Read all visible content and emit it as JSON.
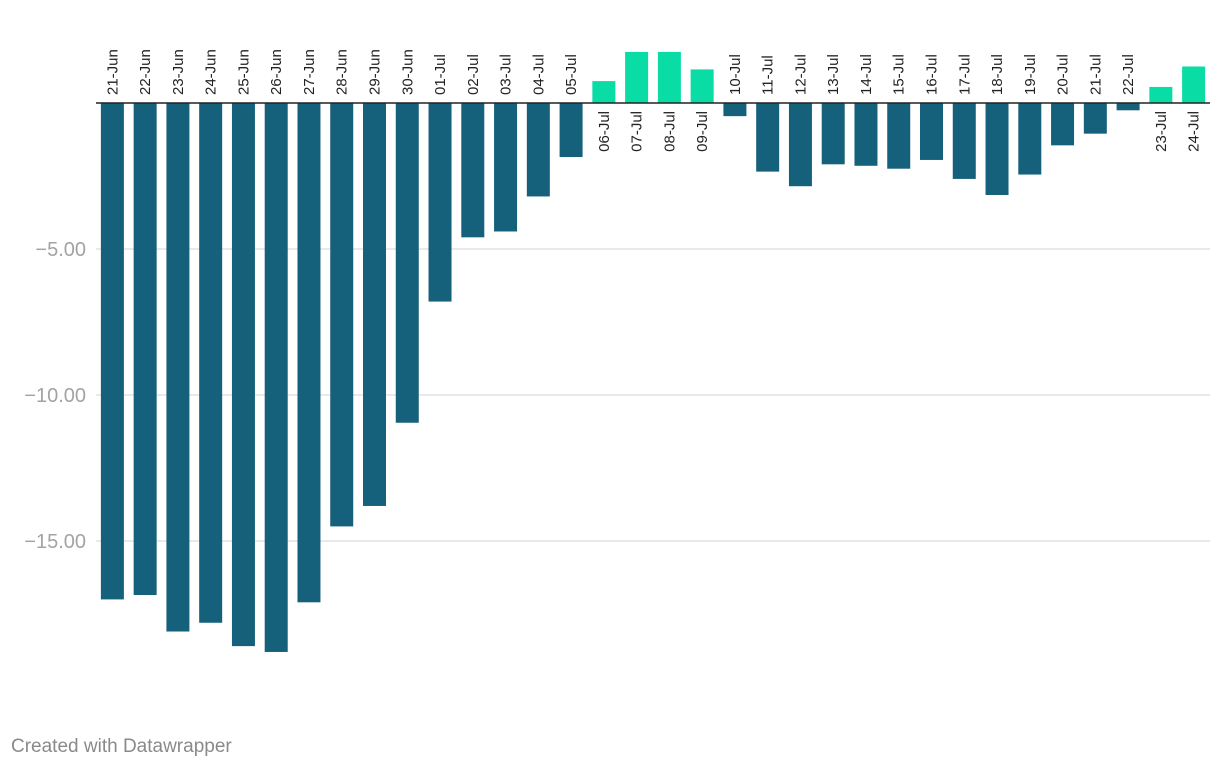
{
  "chart_data": {
    "type": "bar",
    "title": "",
    "xlabel": "",
    "ylabel": "",
    "ylim": [
      -19.5,
      3.4
    ],
    "yticks": [
      -5,
      -10,
      -15
    ],
    "ytick_labels": [
      "−5.00",
      "−10.00",
      "−15.00"
    ],
    "grid": true,
    "categories": [
      "21-Jun",
      "22-Jun",
      "23-Jun",
      "24-Jun",
      "25-Jun",
      "26-Jun",
      "27-Jun",
      "28-Jun",
      "29-Jun",
      "30-Jun",
      "01-Jul",
      "02-Jul",
      "03-Jul",
      "04-Jul",
      "05-Jul",
      "06-Jul",
      "07-Jul",
      "08-Jul",
      "09-Jul",
      "10-Jul",
      "11-Jul",
      "12-Jul",
      "13-Jul",
      "14-Jul",
      "15-Jul",
      "16-Jul",
      "17-Jul",
      "18-Jul",
      "19-Jul",
      "20-Jul",
      "21-Jul",
      "22-Jul",
      "23-Jul",
      "24-Jul"
    ],
    "values": [
      -17.0,
      -16.85,
      -18.1,
      -17.8,
      -18.6,
      -18.8,
      -17.1,
      -14.5,
      -13.8,
      -10.95,
      -6.8,
      -4.6,
      -4.4,
      -3.2,
      -1.85,
      0.75,
      1.75,
      1.75,
      1.15,
      -0.45,
      -2.35,
      -2.85,
      -2.1,
      -2.15,
      -2.25,
      -1.95,
      -2.6,
      -3.15,
      -2.45,
      -1.45,
      -1.05,
      -0.25,
      0.55,
      1.25
    ]
  },
  "colors": {
    "negative": "#15607a",
    "positive": "#09dca4",
    "grid": "#e2e2e2",
    "baseline": "#222222"
  },
  "credit": "Created with Datawrapper"
}
